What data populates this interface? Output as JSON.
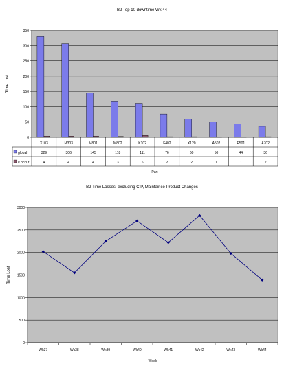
{
  "chart_data": [
    {
      "type": "bar",
      "title": "B2 Top 10 downtime Wk 44",
      "xlabel": "Part",
      "ylabel": "Time Lost",
      "ylim": [
        0,
        350
      ],
      "yticks": [
        0,
        50,
        100,
        150,
        200,
        250,
        300,
        350
      ],
      "grid": true,
      "legend": "table-below",
      "categories": [
        "X103",
        "M303",
        "M801",
        "M802",
        "K102",
        "F402",
        "X120",
        "A502",
        "E501",
        "A702"
      ],
      "series": [
        {
          "name": "global",
          "values": [
            329,
            306,
            145,
            118,
            111,
            76,
            60,
            50,
            44,
            36
          ],
          "value_labels": [
            "329",
            "306",
            "145",
            "118",
            "111",
            "76",
            "60",
            "50",
            "44",
            "36"
          ],
          "color": "#7b7bea"
        },
        {
          "name": "# occur",
          "values": [
            4,
            4,
            4,
            3,
            6,
            2,
            2,
            1,
            1,
            2
          ],
          "value_labels": [
            "4",
            "4",
            "4",
            "3",
            "6",
            "2",
            "2",
            "1",
            "1",
            "2"
          ],
          "color": "#8c5a6e"
        }
      ],
      "plot_bg": "#c0c0c0"
    },
    {
      "type": "line",
      "title": "B2 Time Losses, excluding CIP, Maintaince Product Changes",
      "xlabel": "Week",
      "ylabel": "Time Lost",
      "ylim": [
        0,
        3000
      ],
      "yticks": [
        0,
        500,
        1000,
        1500,
        2000,
        2500,
        3000
      ],
      "grid": true,
      "categories": [
        "Wk37",
        "Wk38",
        "Wk39",
        "Wk40",
        "Wk41",
        "Wk42",
        "Wk43",
        "Wk44"
      ],
      "series": [
        {
          "values": [
            2020,
            1550,
            2250,
            2700,
            2220,
            2820,
            1980,
            1390
          ],
          "color": "#00007f"
        }
      ],
      "plot_bg": "#c0c0c0"
    }
  ]
}
